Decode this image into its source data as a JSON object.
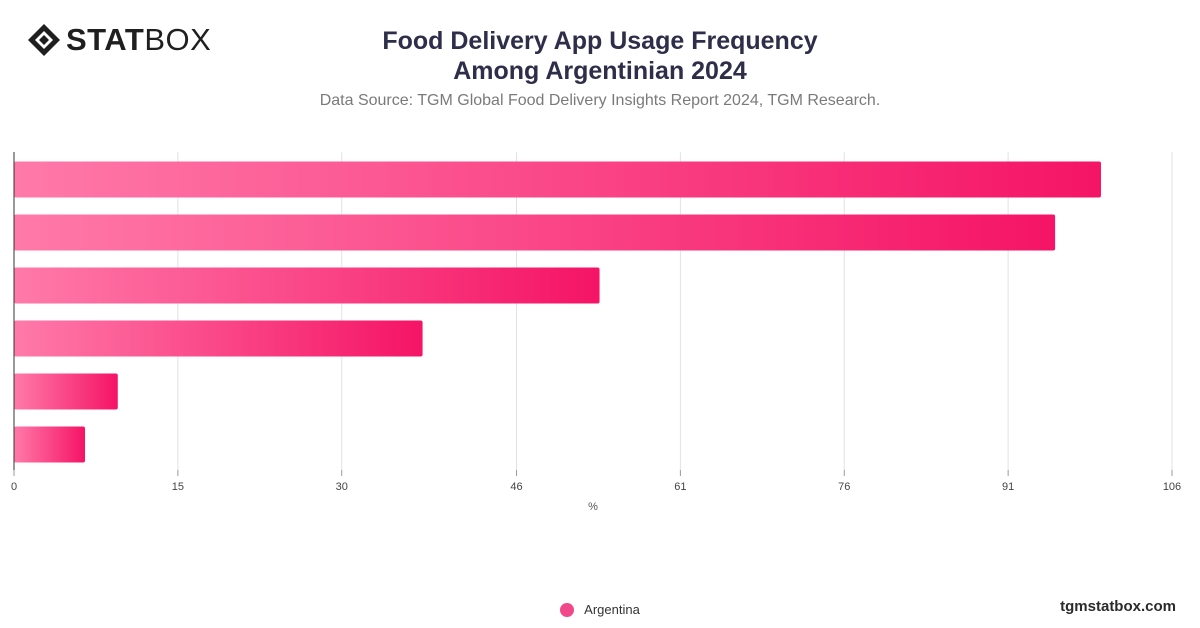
{
  "brand": {
    "name_bold": "STAT",
    "name_light": "BOX",
    "site": "tgmstatbox.com"
  },
  "header": {
    "title_line1": "Food Delivery App Usage Frequency",
    "title_line2": "Among Argentinian 2024",
    "subtitle": "Data Source: TGM Global Food Delivery Insights Report 2024, TGM Research."
  },
  "colors": {
    "bar_start": "#ff7aa8",
    "bar_end": "#f51466",
    "grid": "#e2e2e2",
    "axis": "#333333"
  },
  "chart_data": {
    "type": "bar",
    "orientation": "horizontal",
    "categories": [
      "",
      "",
      "",
      "",
      "",
      ""
    ],
    "series": [
      {
        "name": "Argentina",
        "values": [
          99.5,
          95.3,
          53.6,
          37.4,
          9.5,
          6.5
        ]
      }
    ],
    "xlabel": "%",
    "xlim": [
      0,
      106
    ],
    "xticks": [
      0,
      15,
      30,
      46,
      61,
      76,
      91,
      106
    ],
    "grid": true,
    "legend": "bottom-center"
  }
}
